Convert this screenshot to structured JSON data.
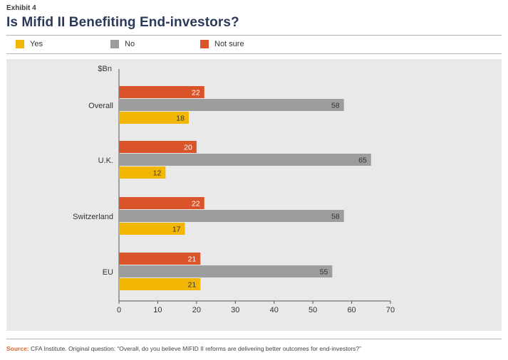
{
  "header": {
    "exhibit": "Exhibit 4",
    "title": "Is Mifid II Benefiting End-investors?"
  },
  "legend": [
    {
      "label": "Yes",
      "color": "#f2b705"
    },
    {
      "label": "No",
      "color": "#9d9d9d"
    },
    {
      "label": "Not sure",
      "color": "#d9542b"
    }
  ],
  "source": {
    "prefix": "Source:",
    "text": "CFA Institute. Original question: “Overall, do you believe MiFID II reforms are delivering better outcomes for end-investors?”"
  },
  "chart_data": {
    "type": "bar",
    "orientation": "horizontal",
    "title": "Is Mifid II Benefiting End-investors?",
    "unit_label": "$Bn",
    "categories": [
      "Overall",
      "U.K.",
      "Switzerland",
      "EU"
    ],
    "series": [
      {
        "name": "Not sure",
        "color": "#d9542b",
        "values": [
          22,
          20,
          22,
          21
        ]
      },
      {
        "name": "No",
        "color": "#9d9d9d",
        "values": [
          58,
          65,
          58,
          55
        ]
      },
      {
        "name": "Yes",
        "color": "#f2b705",
        "values": [
          18,
          12,
          17,
          21
        ]
      }
    ],
    "xlim": [
      0,
      70
    ],
    "xticks": [
      0,
      10,
      20,
      30,
      40,
      50,
      60,
      70
    ],
    "grid": false,
    "legend_position": "top-left"
  }
}
